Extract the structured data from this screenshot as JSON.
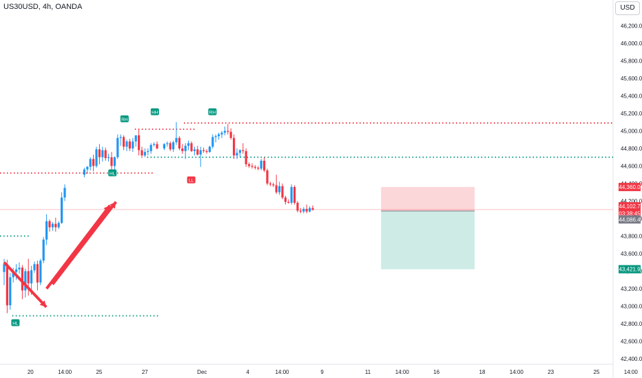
{
  "symbol_label": "US30USD, 4h, OANDA",
  "currency_button": "USD",
  "chart_data": {
    "type": "candlestick",
    "price_axis": {
      "range": [
        42400,
        46400
      ],
      "ticks": [
        42400,
        42600,
        42800,
        43000,
        43200,
        43400,
        43600,
        43800,
        44000,
        44200,
        44400,
        44600,
        44800,
        45000,
        45200,
        45400,
        45600,
        45800,
        46000,
        46200
      ],
      "tick_labels": [
        "42,400.0",
        "42,600.0",
        "42,800.0",
        "43,000.0",
        "43,200.0",
        "43,400.0",
        "43,600.0",
        "43,800.0",
        "44,000.0",
        "44,200.0",
        "44,400.0",
        "44,600.0",
        "44,800.0",
        "45,000.0",
        "45,200.0",
        "45,400.0",
        "45,600.0",
        "45,800.0",
        "46,000.0",
        "46,200.0"
      ]
    },
    "time_axis": {
      "labels": [
        "20",
        "14:00",
        "25",
        "27",
        "Dec",
        "4",
        "14:00",
        "9",
        "11",
        "14:00",
        "16",
        "18",
        "14:00",
        "23",
        "25",
        "14:00"
      ],
      "label_positions": [
        0.5,
        3.5,
        6.5,
        10.5,
        15.5,
        19.5,
        22.5,
        26,
        30,
        33,
        36,
        40,
        43,
        46,
        50,
        53
      ]
    },
    "candles": [
      {
        "o": 43390,
        "h": 43540,
        "l": 43240,
        "c": 43480
      },
      {
        "o": 43480,
        "h": 43530,
        "l": 42920,
        "c": 43010
      },
      {
        "o": 43010,
        "h": 43380,
        "l": 42960,
        "c": 43330
      },
      {
        "o": 43330,
        "h": 43440,
        "l": 43270,
        "c": 43390
      },
      {
        "o": 43390,
        "h": 43480,
        "l": 43300,
        "c": 43420
      },
      {
        "o": 43420,
        "h": 43500,
        "l": 43370,
        "c": 43440
      },
      {
        "o": 43440,
        "h": 43470,
        "l": 43080,
        "c": 43180
      },
      {
        "o": 43180,
        "h": 43430,
        "l": 43100,
        "c": 43400
      },
      {
        "o": 43400,
        "h": 43540,
        "l": 43120,
        "c": 43260
      },
      {
        "o": 43260,
        "h": 43460,
        "l": 43130,
        "c": 43410
      },
      {
        "o": 43410,
        "h": 43510,
        "l": 43380,
        "c": 43480
      },
      {
        "o": 43480,
        "h": 43520,
        "l": 43180,
        "c": 43270
      },
      {
        "o": 43270,
        "h": 43540,
        "l": 43240,
        "c": 43520
      },
      {
        "o": 43520,
        "h": 43790,
        "l": 43490,
        "c": 43760
      },
      {
        "o": 43760,
        "h": 44050,
        "l": 43700,
        "c": 43970
      },
      {
        "o": 43970,
        "h": 43990,
        "l": 43850,
        "c": 43900
      },
      {
        "o": 43900,
        "h": 43960,
        "l": 43860,
        "c": 43940
      },
      {
        "o": 43940,
        "h": 44010,
        "l": 43850,
        "c": 43900
      },
      {
        "o": 43900,
        "h": 43970,
        "l": 43880,
        "c": 43950
      },
      {
        "o": 43950,
        "h": 44300,
        "l": 43940,
        "c": 44240
      },
      {
        "o": 44240,
        "h": 44390,
        "l": 44200,
        "c": 44350
      },
      {
        "o": 44500,
        "h": 44580,
        "l": 44470,
        "c": 44560
      },
      {
        "o": 44560,
        "h": 44600,
        "l": 44510,
        "c": 44590
      },
      {
        "o": 44590,
        "h": 44700,
        "l": 44550,
        "c": 44680
      },
      {
        "o": 44680,
        "h": 44730,
        "l": 44540,
        "c": 44600
      },
      {
        "o": 44600,
        "h": 44820,
        "l": 44580,
        "c": 44790
      },
      {
        "o": 44790,
        "h": 44850,
        "l": 44620,
        "c": 44700
      },
      {
        "o": 44700,
        "h": 44820,
        "l": 44650,
        "c": 44780
      },
      {
        "o": 44780,
        "h": 44810,
        "l": 44660,
        "c": 44690
      },
      {
        "o": 44690,
        "h": 44740,
        "l": 44650,
        "c": 44700
      },
      {
        "o": 44700,
        "h": 44760,
        "l": 44560,
        "c": 44600
      },
      {
        "o": 44600,
        "h": 44710,
        "l": 44510,
        "c": 44700
      },
      {
        "o": 44700,
        "h": 44960,
        "l": 44680,
        "c": 44920
      },
      {
        "o": 44920,
        "h": 44960,
        "l": 44830,
        "c": 44930
      },
      {
        "o": 44930,
        "h": 44950,
        "l": 44780,
        "c": 44820
      },
      {
        "o": 44820,
        "h": 44900,
        "l": 44770,
        "c": 44880
      },
      {
        "o": 44880,
        "h": 44910,
        "l": 44770,
        "c": 44800
      },
      {
        "o": 44800,
        "h": 44920,
        "l": 44760,
        "c": 44880
      },
      {
        "o": 44880,
        "h": 44950,
        "l": 44820,
        "c": 44950
      },
      {
        "o": 44950,
        "h": 45020,
        "l": 44720,
        "c": 44780
      },
      {
        "o": 44780,
        "h": 44820,
        "l": 44690,
        "c": 44720
      },
      {
        "o": 44720,
        "h": 44800,
        "l": 44700,
        "c": 44760
      },
      {
        "o": 44760,
        "h": 44800,
        "l": 44720,
        "c": 44770
      },
      {
        "o": 44770,
        "h": 44860,
        "l": 44740,
        "c": 44840
      },
      {
        "o": 44840,
        "h": 44870,
        "l": 44820,
        "c": 44850
      },
      {
        "o": 44850,
        "h": 44880,
        "l": 44790,
        "c": 44800
      },
      {
        "o": 44800,
        "h": 44860,
        "l": 44780,
        "c": 44850
      },
      {
        "o": 44850,
        "h": 44880,
        "l": 44820,
        "c": 44860
      },
      {
        "o": 44860,
        "h": 44880,
        "l": 44770,
        "c": 44790
      },
      {
        "o": 44790,
        "h": 44890,
        "l": 44760,
        "c": 44870
      },
      {
        "o": 44870,
        "h": 45100,
        "l": 44840,
        "c": 44920
      },
      {
        "o": 44920,
        "h": 44940,
        "l": 44780,
        "c": 44800
      },
      {
        "o": 44800,
        "h": 44850,
        "l": 44740,
        "c": 44770
      },
      {
        "o": 44770,
        "h": 44860,
        "l": 44680,
        "c": 44830
      },
      {
        "o": 44830,
        "h": 44890,
        "l": 44780,
        "c": 44860
      },
      {
        "o": 44860,
        "h": 44880,
        "l": 44760,
        "c": 44770
      },
      {
        "o": 44770,
        "h": 44820,
        "l": 44720,
        "c": 44790
      },
      {
        "o": 44790,
        "h": 44830,
        "l": 44720,
        "c": 44730
      },
      {
        "o": 44730,
        "h": 44820,
        "l": 44590,
        "c": 44780
      },
      {
        "o": 44780,
        "h": 44810,
        "l": 44750,
        "c": 44770
      },
      {
        "o": 44770,
        "h": 44790,
        "l": 44740,
        "c": 44760
      },
      {
        "o": 44760,
        "h": 44830,
        "l": 44750,
        "c": 44820
      },
      {
        "o": 44820,
        "h": 44960,
        "l": 44800,
        "c": 44930
      },
      {
        "o": 44930,
        "h": 44960,
        "l": 44870,
        "c": 44940
      },
      {
        "o": 44940,
        "h": 44980,
        "l": 44900,
        "c": 44960
      },
      {
        "o": 44960,
        "h": 45000,
        "l": 44920,
        "c": 44980
      },
      {
        "o": 44980,
        "h": 45050,
        "l": 44950,
        "c": 45000
      },
      {
        "o": 45000,
        "h": 45080,
        "l": 44960,
        "c": 44990
      },
      {
        "o": 44990,
        "h": 45030,
        "l": 44900,
        "c": 44920
      },
      {
        "o": 44920,
        "h": 44960,
        "l": 44680,
        "c": 44720
      },
      {
        "o": 44720,
        "h": 44800,
        "l": 44680,
        "c": 44750
      },
      {
        "o": 44750,
        "h": 44790,
        "l": 44700,
        "c": 44780
      },
      {
        "o": 44780,
        "h": 44860,
        "l": 44740,
        "c": 44770
      },
      {
        "o": 44770,
        "h": 44800,
        "l": 44590,
        "c": 44620
      },
      {
        "o": 44620,
        "h": 44640,
        "l": 44580,
        "c": 44600
      },
      {
        "o": 44600,
        "h": 44630,
        "l": 44570,
        "c": 44590
      },
      {
        "o": 44590,
        "h": 44610,
        "l": 44560,
        "c": 44580
      },
      {
        "o": 44580,
        "h": 44600,
        "l": 44550,
        "c": 44570
      },
      {
        "o": 44570,
        "h": 44680,
        "l": 44550,
        "c": 44660
      },
      {
        "o": 44660,
        "h": 44700,
        "l": 44530,
        "c": 44550
      },
      {
        "o": 44550,
        "h": 44570,
        "l": 44380,
        "c": 44400
      },
      {
        "o": 44400,
        "h": 44420,
        "l": 44370,
        "c": 44390
      },
      {
        "o": 44390,
        "h": 44410,
        "l": 44360,
        "c": 44380
      },
      {
        "o": 44380,
        "h": 44500,
        "l": 44280,
        "c": 44300
      },
      {
        "o": 44300,
        "h": 44420,
        "l": 44270,
        "c": 44370
      },
      {
        "o": 44370,
        "h": 44400,
        "l": 44220,
        "c": 44240
      },
      {
        "o": 44240,
        "h": 44260,
        "l": 44160,
        "c": 44190
      },
      {
        "o": 44190,
        "h": 44220,
        "l": 44170,
        "c": 44180
      },
      {
        "o": 44180,
        "h": 44390,
        "l": 44160,
        "c": 44360
      },
      {
        "o": 44360,
        "h": 44380,
        "l": 44160,
        "c": 44180
      },
      {
        "o": 44180,
        "h": 44200,
        "l": 44070,
        "c": 44090
      },
      {
        "o": 44090,
        "h": 44120,
        "l": 44060,
        "c": 44080
      },
      {
        "o": 44080,
        "h": 44130,
        "l": 44060,
        "c": 44110
      },
      {
        "o": 44110,
        "h": 44160,
        "l": 44060,
        "c": 44080
      },
      {
        "o": 44080,
        "h": 44140,
        "l": 44070,
        "c": 44120
      },
      {
        "o": 44120,
        "h": 44150,
        "l": 44090,
        "c": 44100
      }
    ],
    "level_lines": [
      {
        "price": 45090,
        "color": "#f23645",
        "from": 0.3,
        "to": 1.0
      },
      {
        "price": 44700,
        "color": "#089981",
        "from": 0.24,
        "to": 1.0
      },
      {
        "price": 44520,
        "color": "#f23645",
        "from": 0.0,
        "to": 0.25
      },
      {
        "price": 43800,
        "color": "#089981",
        "from": 0.0,
        "to": 0.05
      },
      {
        "price": 42890,
        "color": "#089981",
        "from": 0.02,
        "to": 0.26
      },
      {
        "price": 45020,
        "color": "#f23645",
        "from": 0.22,
        "to": 0.32
      }
    ],
    "position": {
      "entry": 44086.4,
      "stop": 44360.0,
      "target": 43421.9,
      "start_candle": 98,
      "end_candle": 124
    },
    "current_price_line": 44102.7,
    "pivot_labels": [
      {
        "text": "HL",
        "kind": "low",
        "candle": 1,
        "price": 42890
      },
      {
        "text": "HL",
        "kind": "low",
        "candle": 33,
        "price": 44600
      },
      {
        "text": "LL",
        "kind": "low",
        "candle": 59,
        "price": 44520
      },
      {
        "text": "RH",
        "kind": "high",
        "candle": 37,
        "price": 45060
      },
      {
        "text": "HH",
        "kind": "high",
        "candle": 47,
        "price": 45140
      },
      {
        "text": "RH",
        "kind": "high",
        "candle": 66,
        "price": 45140
      }
    ],
    "price_badges": [
      {
        "text": "44,360.0",
        "price": 44360.0,
        "color": "#f23645"
      },
      {
        "text": "44,102.7",
        "price": 44140,
        "color": "#f23645"
      },
      {
        "text": "03:38:45",
        "price": 44060,
        "color": "#f23645"
      },
      {
        "text": "44,086.4",
        "price": 43990,
        "color": "#787b86"
      },
      {
        "text": "43,421.9",
        "price": 43421.9,
        "color": "#089981"
      }
    ],
    "arrows": [
      {
        "from": [
          0,
          43500
        ],
        "to": [
          3,
          42990
        ],
        "color": "#f23645"
      },
      {
        "from": [
          14,
          43200
        ],
        "to": [
          24,
          44150
        ],
        "color": "#f23645"
      },
      {
        "from": [
          16,
          43250
        ],
        "to": [
          26,
          44190
        ],
        "color": "#f23645"
      }
    ]
  }
}
